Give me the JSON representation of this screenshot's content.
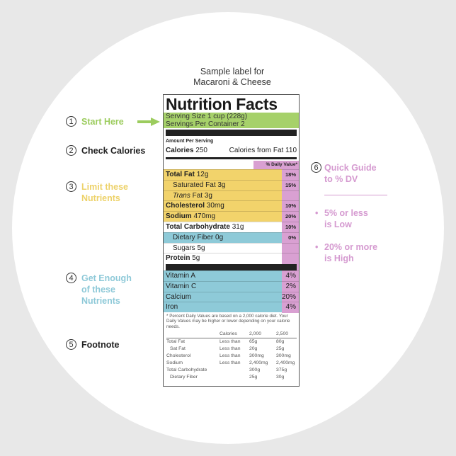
{
  "caption": [
    "Sample label for",
    "Macaroni & Cheese"
  ],
  "label": {
    "title": "Nutrition Facts",
    "serving_size": "Serving Size 1 cup (228g)",
    "servings_per_container": "Servings Per Container 2",
    "amount_per_serving": "Amount Per Serving",
    "calories_label": "Calories",
    "calories_value": "250",
    "calories_from_fat": "Calories from Fat 110",
    "dv_header": "% Daily Value*",
    "nutrients": [
      {
        "name": "Total Fat",
        "amount": "12g",
        "pct": "18%",
        "bold": true,
        "indent": false,
        "color": "#f2d36b"
      },
      {
        "name": "Saturated Fat",
        "amount": "3g",
        "pct": "15%",
        "bold": false,
        "indent": true,
        "color": "#f2d36b"
      },
      {
        "name": "Trans",
        "suffix": " Fat",
        "amount": "3g",
        "pct": "",
        "bold": false,
        "indent": true,
        "italic": true,
        "color": "#f2d36b"
      },
      {
        "name": "Cholesterol",
        "amount": "30mg",
        "pct": "10%",
        "bold": true,
        "indent": false,
        "color": "#f2d36b"
      },
      {
        "name": "Sodium",
        "amount": "470mg",
        "pct": "20%",
        "bold": true,
        "indent": false,
        "color": "#f2d36b"
      },
      {
        "name": "Total Carbohydrate",
        "amount": "31g",
        "pct": "10%",
        "bold": true,
        "indent": false,
        "color": "#ffffff"
      },
      {
        "name": "Dietary Fiber",
        "amount": "0g",
        "pct": "0%",
        "bold": false,
        "indent": true,
        "color": "#8ecad8"
      },
      {
        "name": "Sugars",
        "amount": "5g",
        "pct": "",
        "bold": false,
        "indent": true,
        "color": "#ffffff"
      },
      {
        "name": "Protein",
        "amount": "5g",
        "pct": "",
        "bold": true,
        "indent": false,
        "color": "#ffffff"
      }
    ],
    "vitamins": [
      {
        "name": "Vitamin A",
        "pct": "4%"
      },
      {
        "name": "Vitamin C",
        "pct": "2%"
      },
      {
        "name": "Calcium",
        "pct": "20%"
      },
      {
        "name": "Iron",
        "pct": "4%"
      }
    ],
    "footnote": "* Percent Daily Values are based on a 2,000 calorie diet. Your Daily Values may be higher or lower depending on your calorie needs.",
    "footnote_table": {
      "header": [
        "",
        "Calories",
        "2,000",
        "2,500"
      ],
      "rows": [
        [
          "Total Fat",
          "Less than",
          "65g",
          "80g"
        ],
        [
          "Sat Fat",
          "Less than",
          "20g",
          "25g"
        ],
        [
          "Cholesterol",
          "Less than",
          "300mg",
          "300mg"
        ],
        [
          "Sodium",
          "Less than",
          "2,400mg",
          "2,400mg"
        ],
        [
          "Total Carbohydrate",
          "",
          "300g",
          "375g"
        ],
        [
          "Dietary Fiber",
          "",
          "25g",
          "30g"
        ]
      ]
    }
  },
  "guide": {
    "step1": {
      "num": "1",
      "text": "Start Here",
      "color": "#9ccc5e"
    },
    "step2": {
      "num": "2",
      "text": "Check Calories",
      "color": "#222222"
    },
    "step3": {
      "num": "3",
      "lines": [
        "Limit these",
        "Nutrients"
      ],
      "color": "#edd26a"
    },
    "step4": {
      "num": "4",
      "lines": [
        "Get Enough",
        "of these",
        "Nutrients"
      ],
      "color": "#8ec9d8"
    },
    "step5": {
      "num": "5",
      "text": "Footnote",
      "color": "#222222"
    },
    "step6": {
      "num": "6",
      "lines": [
        "Quick Guide",
        "to % DV"
      ],
      "color": "#d59ad0"
    },
    "bullets": [
      {
        "lines": [
          "5% or less",
          "is Low"
        ]
      },
      {
        "lines": [
          "20% or more",
          "is High"
        ]
      }
    ]
  },
  "colors": {
    "green": "#a6d16a",
    "yellow": "#f2d36b",
    "blue": "#8ecad8",
    "pink": "#d9a0d2"
  }
}
